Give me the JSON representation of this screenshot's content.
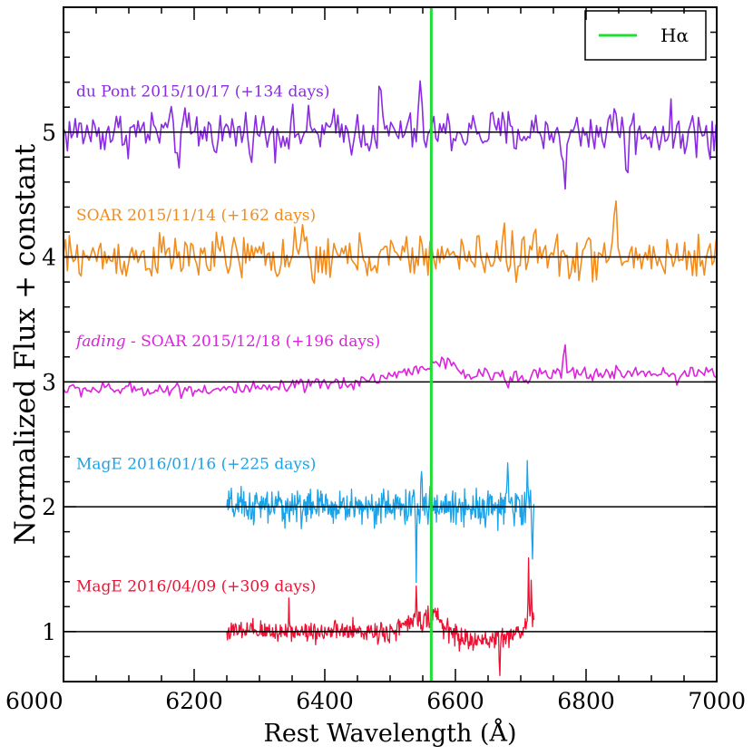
{
  "chart_data": {
    "type": "line",
    "xlabel": "Rest Wavelength (Å)",
    "ylabel": "Normalized Flux + constant",
    "xlim": [
      6000,
      7000
    ],
    "ylim": [
      0.6,
      6.0
    ],
    "xticks": [
      6000,
      6200,
      6400,
      6600,
      6800,
      7000
    ],
    "yticks": [
      1,
      2,
      3,
      4,
      5
    ],
    "xtick_labels": [
      "6000",
      "6200",
      "6400",
      "6600",
      "6800",
      "7000"
    ],
    "ytick_labels": [
      "1",
      "2",
      "3",
      "4",
      "5"
    ],
    "reference_line": {
      "name": "Hα",
      "x": 6563,
      "color": "#22dd33"
    },
    "legend": {
      "position": "top-right",
      "entries": [
        {
          "label": "Hα",
          "color": "#22dd33"
        }
      ]
    },
    "series": [
      {
        "name": "du Pont 2015/10/17 (+134 days)",
        "label_prefix": "",
        "label_main": "du Pont 2015/10/17 (+134 days)",
        "color": "#8a2be2",
        "baseline": 5,
        "x_range": [
          6000,
          7000
        ],
        "step": 3,
        "noise": 0.13,
        "features": [
          {
            "x": 6485,
            "dy": 0.35
          },
          {
            "x": 6545,
            "dy": 0.35
          },
          {
            "x": 6768,
            "dy": -0.55
          },
          {
            "x": 6845,
            "dy": 0.33
          },
          {
            "x": 6862,
            "dy": -0.35
          },
          {
            "x": 6175,
            "dy": -0.22
          },
          {
            "x": 6990,
            "dy": -0.2
          }
        ]
      },
      {
        "name": "SOAR 2015/11/14 (+162 days)",
        "label_prefix": "",
        "label_main": "SOAR 2015/11/14 (+162 days)",
        "color": "#f28c1c",
        "baseline": 4,
        "x_range": [
          6000,
          7000
        ],
        "step": 3,
        "noise": 0.13,
        "features": [
          {
            "x": 6365,
            "dy": 0.28
          },
          {
            "x": 6382,
            "dy": -0.3
          },
          {
            "x": 6575,
            "dy": 0.2
          },
          {
            "x": 6675,
            "dy": 0.28
          },
          {
            "x": 6720,
            "dy": 0.3
          },
          {
            "x": 6845,
            "dy": 0.4
          }
        ]
      },
      {
        "name": "fading - SOAR 2015/12/18 (+196 days)",
        "label_prefix": "fading",
        "label_main": " - SOAR 2015/12/18 (+196 days)",
        "color": "#dd22dd",
        "baseline": 3,
        "x_range": [
          6000,
          7000
        ],
        "step": 3,
        "noise": 0.04,
        "features": [
          {
            "x": 6767,
            "dy": 0.26
          },
          {
            "x": 6680,
            "dy": -0.12
          },
          {
            "x": 6940,
            "dy": -0.12
          }
        ],
        "trend": [
          [
            6000,
            -0.06
          ],
          [
            6300,
            -0.06
          ],
          [
            6450,
            0.0
          ],
          [
            6530,
            0.08
          ],
          [
            6560,
            0.14
          ],
          [
            6580,
            0.16
          ],
          [
            6620,
            0.05
          ],
          [
            7000,
            0.08
          ]
        ]
      },
      {
        "name": "MagE 2016/01/16 (+225 days)",
        "label_prefix": "",
        "label_main": "MagE 2016/01/16 (+225 days)",
        "color": "#1aa3e8",
        "baseline": 2,
        "x_range": [
          6250,
          6720
        ],
        "step": 1,
        "noise": 0.1,
        "features": [
          {
            "x": 6540,
            "dy": -0.55
          },
          {
            "x": 6548,
            "dy": 0.25
          },
          {
            "x": 6680,
            "dy": 0.33
          },
          {
            "x": 6710,
            "dy": 0.32
          },
          {
            "x": 6718,
            "dy": -0.4
          }
        ]
      },
      {
        "name": "MagE 2016/04/09 (+309 days)",
        "label_prefix": "",
        "label_main": "MagE 2016/04/09 (+309 days)",
        "color": "#ee1133",
        "baseline": 1,
        "x_range": [
          6250,
          6720
        ],
        "step": 1,
        "noise": 0.06,
        "features": [
          {
            "x": 6345,
            "dy": 0.25
          },
          {
            "x": 6540,
            "dy": 0.22
          },
          {
            "x": 6668,
            "dy": -0.3
          },
          {
            "x": 6712,
            "dy": 0.5
          },
          {
            "x": 6716,
            "dy": 0.4
          }
        ],
        "trend": [
          [
            6250,
            0.0
          ],
          [
            6500,
            0.0
          ],
          [
            6545,
            0.1
          ],
          [
            6570,
            0.12
          ],
          [
            6590,
            0.0
          ],
          [
            6620,
            -0.08
          ],
          [
            6660,
            -0.06
          ],
          [
            6700,
            0.0
          ],
          [
            6720,
            0.1
          ]
        ]
      }
    ]
  }
}
